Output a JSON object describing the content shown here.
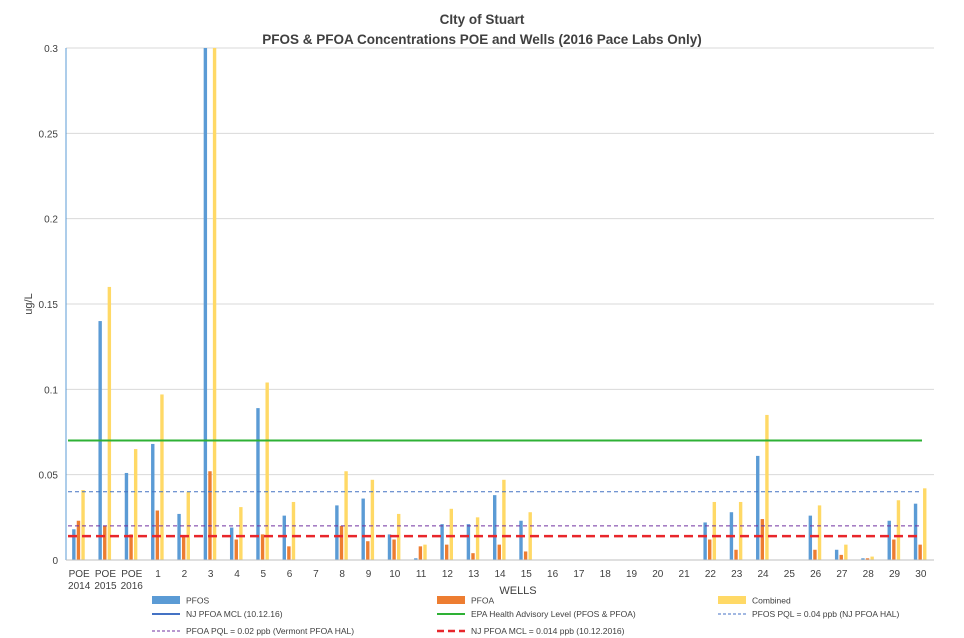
{
  "chart_data": {
    "type": "bar",
    "title": "CIty of Stuart",
    "subtitle": "PFOS & PFOA Concentrations POE and Wells (2016 Pace Labs Only)",
    "xlabel": "WELLS",
    "ylabel": "ug/L",
    "ylim": [
      0,
      0.3
    ],
    "yticks": [
      "0",
      "0.05",
      "0.1",
      "0.15",
      "0.2",
      "0.25",
      "0.3"
    ],
    "grid": true,
    "legend_position": "bottom",
    "categories": [
      [
        "POE",
        "2014"
      ],
      [
        "POE",
        "2015"
      ],
      [
        "POE",
        "2016"
      ],
      [
        "1"
      ],
      [
        "2"
      ],
      [
        "3"
      ],
      [
        "4"
      ],
      [
        "5"
      ],
      [
        "6"
      ],
      [
        "7"
      ],
      [
        "8"
      ],
      [
        "9"
      ],
      [
        "10"
      ],
      [
        "11"
      ],
      [
        "12"
      ],
      [
        "13"
      ],
      [
        "14"
      ],
      [
        "15"
      ],
      [
        "16"
      ],
      [
        "17"
      ],
      [
        "18"
      ],
      [
        "19"
      ],
      [
        "20"
      ],
      [
        "21"
      ],
      [
        "22"
      ],
      [
        "23"
      ],
      [
        "24"
      ],
      [
        "25"
      ],
      [
        "26"
      ],
      [
        "27"
      ],
      [
        "28"
      ],
      [
        "29"
      ],
      [
        "30"
      ]
    ],
    "series": [
      {
        "name": "PFOS",
        "color": "#5B9BD5",
        "values": [
          0.018,
          0.14,
          0.051,
          0.068,
          0.027,
          0.3,
          0.019,
          0.089,
          0.026,
          0,
          0.032,
          0.036,
          0.015,
          0.001,
          0.021,
          0.021,
          0.038,
          0.023,
          0,
          0,
          0,
          0,
          0,
          0,
          0.022,
          0.028,
          0.061,
          0,
          0.026,
          0.006,
          0.001,
          0.023,
          0.033
        ]
      },
      {
        "name": "PFOA",
        "color": "#ED7D31",
        "values": [
          0.023,
          0.02,
          0.015,
          0.029,
          0.014,
          0.052,
          0.012,
          0.015,
          0.008,
          0,
          0.02,
          0.011,
          0.012,
          0.008,
          0.009,
          0.004,
          0.009,
          0.005,
          0,
          0,
          0,
          0,
          0,
          0,
          0.012,
          0.006,
          0.024,
          0,
          0.006,
          0.003,
          0.001,
          0.012,
          0.009
        ]
      },
      {
        "name": "Combined",
        "color": "#FFD966",
        "values": [
          0.041,
          0.16,
          0.065,
          0.097,
          0.04,
          0.3,
          0.031,
          0.104,
          0.034,
          0,
          0.052,
          0.047,
          0.027,
          0.009,
          0.03,
          0.025,
          0.047,
          0.028,
          0,
          0,
          0,
          0,
          0,
          0,
          0.034,
          0.034,
          0.085,
          0,
          0.032,
          0.009,
          0.002,
          0.035,
          0.042
        ]
      }
    ],
    "reference_lines": [
      {
        "name": "NJ PFOA MCL (10.12.16)",
        "value": null,
        "color": "#4472C4",
        "style": "solid"
      },
      {
        "name": "EPA Health Advisory Level (PFOS & PFOA)",
        "value": 0.07,
        "color": "#2EB135",
        "style": "solid"
      },
      {
        "name": "PFOS PQL = 0.04 ppb (NJ PFOA HAL)",
        "value": 0.04,
        "color": "#4472C4",
        "style": "dashed"
      },
      {
        "name": "PFOA PQL = 0.02 ppb (Vermont PFOA HAL)",
        "value": 0.02,
        "color": "#7030A0",
        "style": "dashed"
      },
      {
        "name": "NJ PFOA MCL = 0.014 ppb (10.12.2016)",
        "value": 0.014,
        "color": "#E8262B",
        "style": "dashed-bold"
      }
    ]
  }
}
